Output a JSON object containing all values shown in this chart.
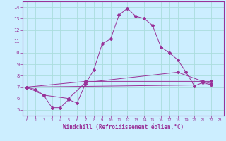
{
  "xlabel": "Windchill (Refroidissement éolien,°C)",
  "bg_color": "#cceeff",
  "line_color": "#993399",
  "grid_color": "#aadddd",
  "xlim": [
    -0.5,
    23.5
  ],
  "ylim": [
    4.5,
    14.5
  ],
  "xticks": [
    0,
    1,
    2,
    3,
    4,
    5,
    6,
    7,
    8,
    9,
    10,
    11,
    12,
    13,
    14,
    15,
    16,
    17,
    18,
    19,
    20,
    21,
    22,
    23
  ],
  "yticks": [
    5,
    6,
    7,
    8,
    9,
    10,
    11,
    12,
    13,
    14
  ],
  "lines": [
    {
      "x": [
        0,
        1,
        2,
        3,
        4,
        5,
        6,
        7,
        8,
        9,
        10,
        11,
        12,
        13,
        14,
        15,
        16,
        17,
        18,
        19,
        20,
        21,
        22
      ],
      "y": [
        7.0,
        6.8,
        6.3,
        5.2,
        5.2,
        5.9,
        5.6,
        7.3,
        8.5,
        10.8,
        11.2,
        13.3,
        13.9,
        13.2,
        13.0,
        12.4,
        10.5,
        10.0,
        9.4,
        8.3,
        7.1,
        7.4,
        7.2
      ],
      "style": "-"
    },
    {
      "x": [
        0,
        7,
        22
      ],
      "y": [
        7.0,
        7.5,
        7.5
      ],
      "style": "-"
    },
    {
      "x": [
        0,
        2,
        5,
        7,
        18,
        21,
        22
      ],
      "y": [
        7.0,
        6.3,
        6.0,
        7.4,
        8.3,
        7.5,
        7.3
      ],
      "style": "-"
    },
    {
      "x": [
        0,
        22
      ],
      "y": [
        7.0,
        7.2
      ],
      "style": "-"
    }
  ]
}
